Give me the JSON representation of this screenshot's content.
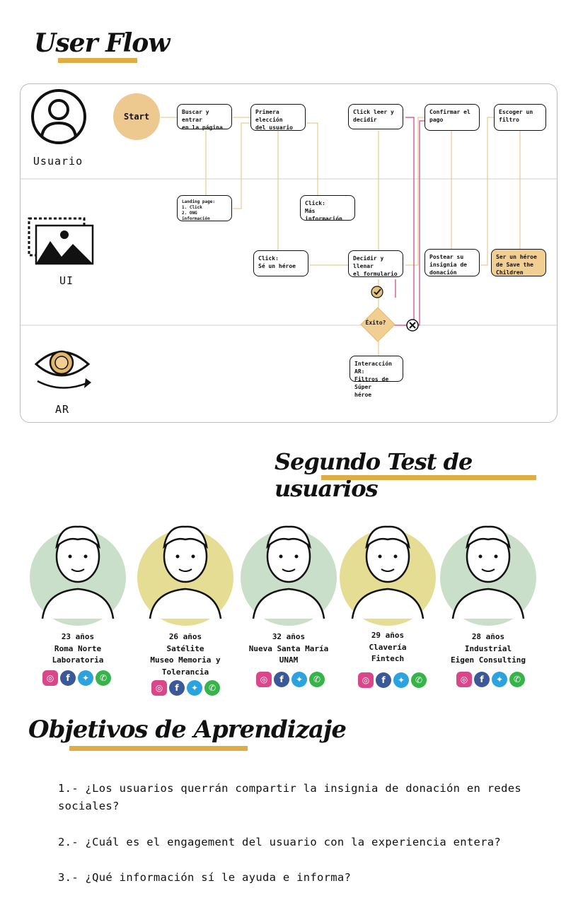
{
  "sections": {
    "user_flow": "User Flow",
    "segundo_test": "Segundo Test de usuarios",
    "objetivos": "Objetivos de Aprendizaje"
  },
  "lanes": {
    "usuario": "Usuario",
    "ui": "UI",
    "ar": "AR"
  },
  "flow": {
    "start": "Start",
    "buscar": "Buscar y entrar\nen la página",
    "primera": "Primera elección\ndel usuario",
    "click_leer": "Click leer y\ndecidir",
    "confirmar": "Confirmar el\npago",
    "escoger": "Escoger un\nfiltro",
    "landing": "Landing page:\n1. Click\n2. ONG información",
    "mas_info": "Click:\nMás información",
    "se_heroe": "Click:\nSé un héroe",
    "decidir": "Decidir y llenar\nel formulario",
    "postear": "Postear su\ninsignia de\ndonación",
    "ser_heroe": "Ser un héroe\nde Save the\nChildren",
    "exito": "Éxito?",
    "interaccion": "Interacción AR:\nFiltros de Súper\nhéroe"
  },
  "personas": [
    {
      "age": "23 años",
      "place": "Roma Norte",
      "work": "Laboratoria",
      "bg": "#c9dfc9"
    },
    {
      "age": "26 años",
      "place": "Satélite",
      "work": "Museo Memoria y\nTolerancia",
      "bg": "#e5dd93"
    },
    {
      "age": "32 años",
      "place": "Nueva Santa María",
      "work": "UNAM",
      "bg": "#c9dfc9"
    },
    {
      "age": "29 años",
      "place": "Clavería",
      "work": "Fintech",
      "bg": "#e5dd93"
    },
    {
      "age": "28 años",
      "place": "Industrial",
      "work": "Eigen Consulting",
      "bg": "#c9dfc9"
    }
  ],
  "objectives": [
    "1.- ¿Los usuarios querrán compartir la insignia de donación en redes sociales?",
    "2.- ¿Cuál es el engagement del usuario con la experiencia entera?",
    "3.- ¿Qué información sí le ayuda e informa?"
  ],
  "colors": {
    "accent": "#e0ad44",
    "connector": "#e3c27a",
    "error_path": "#d63f7f"
  }
}
